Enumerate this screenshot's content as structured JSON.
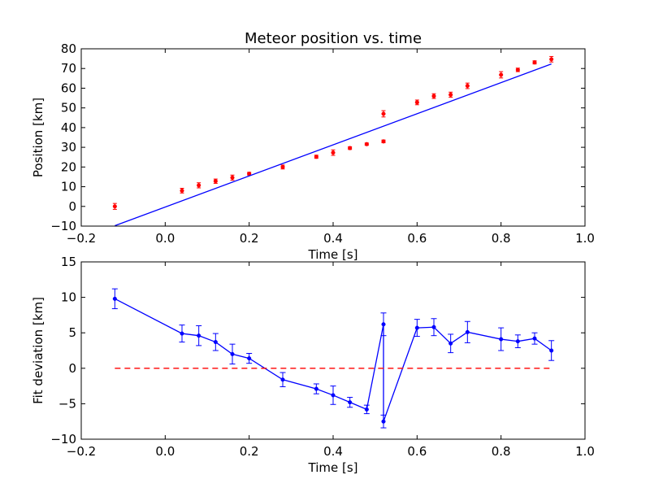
{
  "chart_data": [
    {
      "type": "scatter",
      "title": "Meteor position vs. time",
      "xlabel": "Time [s]",
      "ylabel": "Position [km]",
      "xlim": [
        -0.2,
        1.0
      ],
      "ylim": [
        -10,
        80
      ],
      "xticks": [
        -0.2,
        0.0,
        0.2,
        0.4,
        0.6,
        0.8,
        1.0
      ],
      "yticks": [
        -10,
        0,
        10,
        20,
        30,
        40,
        50,
        60,
        70,
        80
      ],
      "xtick_labels": [
        "−0.2",
        "0.0",
        "0.2",
        "0.4",
        "0.6",
        "0.8",
        "1.0"
      ],
      "ytick_labels": [
        "−10",
        "0",
        "10",
        "20",
        "30",
        "40",
        "50",
        "60",
        "70",
        "80"
      ],
      "grid": false,
      "series": [
        {
          "kind": "errorbar-points",
          "color": "#ff0000",
          "x": [
            -0.12,
            0.04,
            0.08,
            0.12,
            0.16,
            0.2,
            0.28,
            0.36,
            0.4,
            0.44,
            0.48,
            0.52,
            0.52,
            0.6,
            0.64,
            0.68,
            0.72,
            0.8,
            0.84,
            0.88,
            0.92
          ],
          "y": [
            0.0,
            8.0,
            10.7,
            12.8,
            14.6,
            16.6,
            20.0,
            25.2,
            27.3,
            29.6,
            31.6,
            47.0,
            33.0,
            52.8,
            56.0,
            56.7,
            61.2,
            66.8,
            69.3,
            73.1,
            74.7
          ],
          "yerr": [
            1.5,
            1.2,
            1.3,
            1.1,
            1.3,
            0.7,
            1.0,
            0.8,
            1.4,
            0.7,
            0.6,
            1.6,
            0.7,
            1.2,
            1.2,
            1.3,
            1.4,
            1.6,
            0.9,
            0.8,
            1.4
          ]
        },
        {
          "kind": "line",
          "color": "#0000ff",
          "x": [
            -0.12,
            0.92
          ],
          "y": [
            -9.8,
            72.3
          ]
        }
      ]
    },
    {
      "type": "line",
      "title": "",
      "xlabel": "Time [s]",
      "ylabel": "Fit deviation [km]",
      "xlim": [
        -0.2,
        1.0
      ],
      "ylim": [
        -10,
        15
      ],
      "xticks": [
        -0.2,
        0.0,
        0.2,
        0.4,
        0.6,
        0.8,
        1.0
      ],
      "yticks": [
        -10,
        -5,
        0,
        5,
        10,
        15
      ],
      "xtick_labels": [
        "−0.2",
        "0.0",
        "0.2",
        "0.4",
        "0.6",
        "0.8",
        "1.0"
      ],
      "ytick_labels": [
        "−10",
        "−5",
        "0",
        "5",
        "10",
        "15"
      ],
      "grid": false,
      "series": [
        {
          "kind": "errorbar-line",
          "color": "#0000ff",
          "x": [
            -0.12,
            0.04,
            0.08,
            0.12,
            0.16,
            0.2,
            0.28,
            0.36,
            0.4,
            0.44,
            0.48,
            0.52,
            0.52,
            0.6,
            0.64,
            0.68,
            0.72,
            0.8,
            0.84,
            0.88,
            0.92
          ],
          "y": [
            9.8,
            4.9,
            4.6,
            3.7,
            2.0,
            1.4,
            -1.6,
            -2.9,
            -3.8,
            -4.8,
            -5.8,
            6.2,
            -7.5,
            5.7,
            5.8,
            3.5,
            5.1,
            4.1,
            3.8,
            4.2,
            2.5
          ],
          "yerr": [
            1.4,
            1.2,
            1.4,
            1.2,
            1.4,
            0.7,
            1.0,
            0.7,
            1.3,
            0.7,
            0.6,
            1.6,
            0.9,
            1.2,
            1.2,
            1.3,
            1.5,
            1.6,
            0.9,
            0.8,
            1.4
          ]
        },
        {
          "kind": "dashed-line",
          "color": "#ff0000",
          "x": [
            -0.12,
            0.92
          ],
          "y": [
            0,
            0
          ]
        }
      ]
    }
  ]
}
